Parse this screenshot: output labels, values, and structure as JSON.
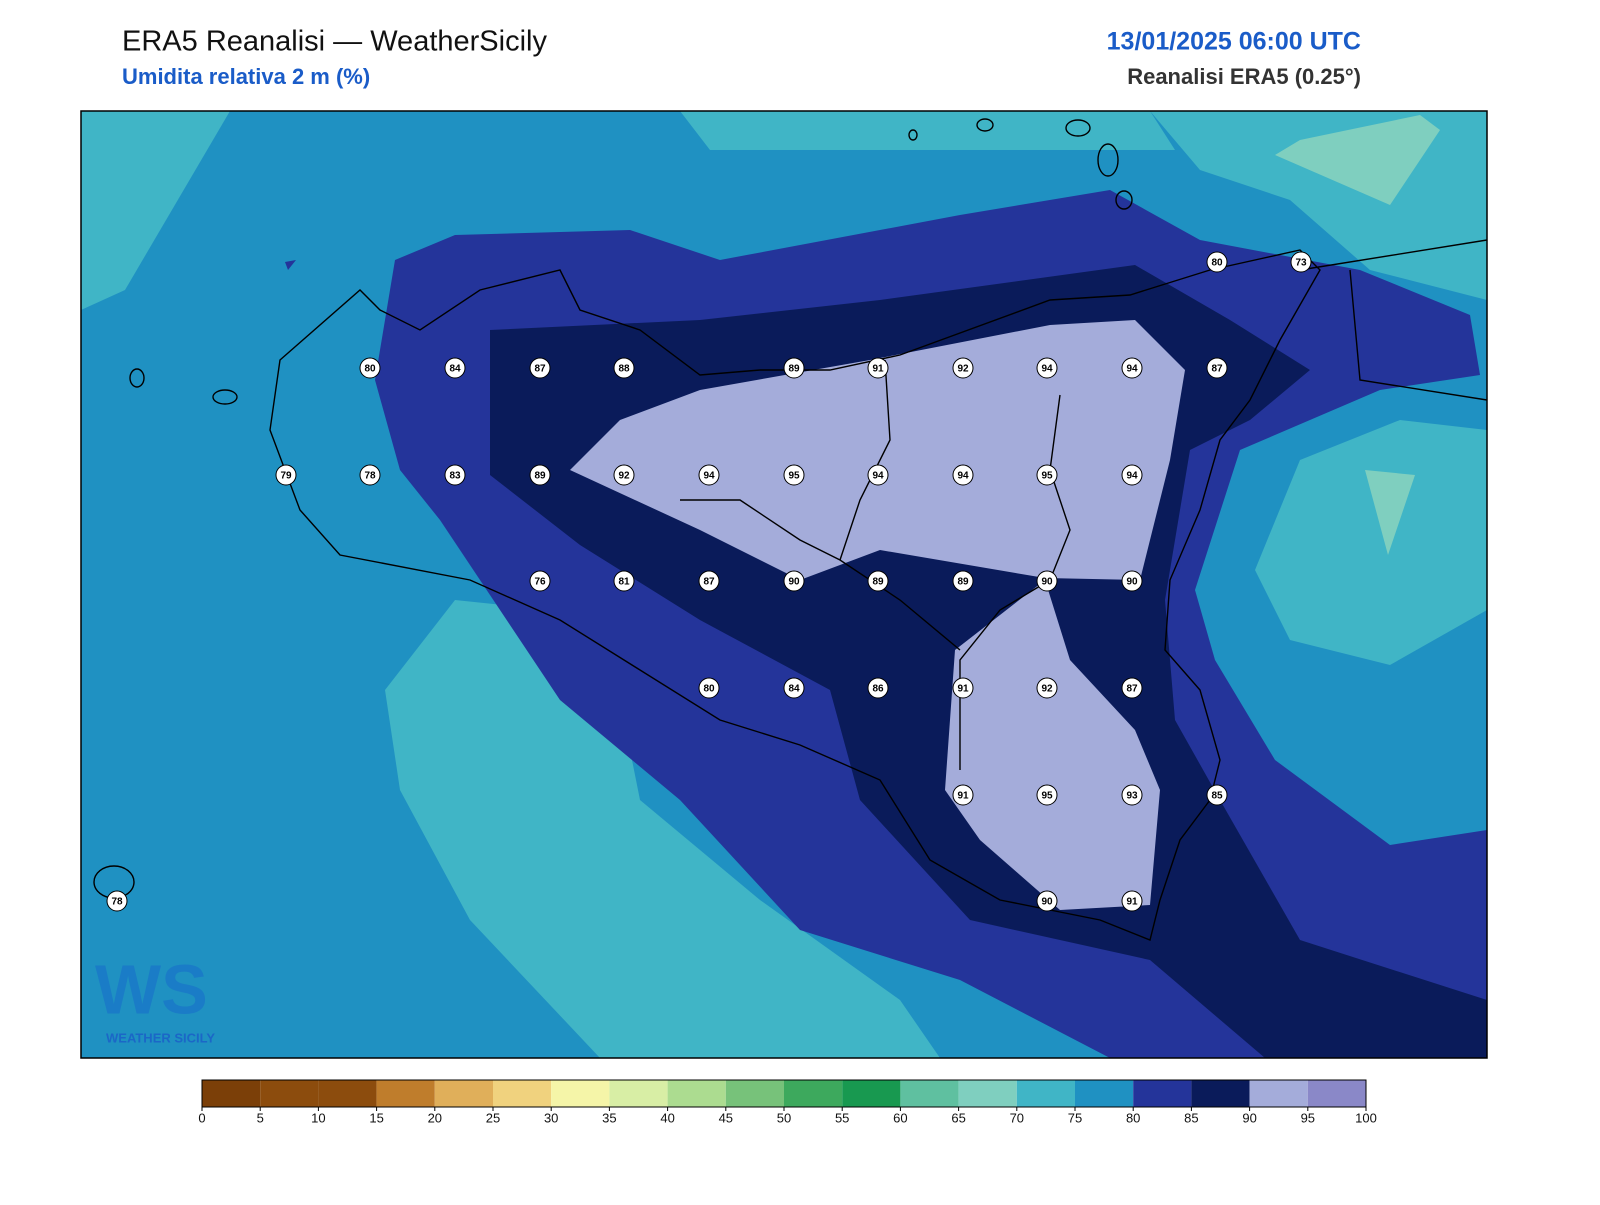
{
  "header": {
    "title": "ERA5 Reanalisi — WeatherSicily",
    "subtitle": "Umidita relativa 2 m (%)",
    "datetime": "13/01/2025 06:00 UTC",
    "source": "Reanalisi ERA5 (0.25°)"
  },
  "map": {
    "stations": [
      80,
      73,
      80,
      84,
      87,
      88,
      89,
      91,
      92,
      94,
      94,
      87,
      79,
      78,
      83,
      89,
      92,
      94,
      95,
      94,
      94,
      95,
      94,
      76,
      81,
      87,
      90,
      89,
      89,
      90,
      90,
      80,
      84,
      86,
      91,
      92,
      87,
      91,
      95,
      93,
      85,
      78,
      90,
      91
    ]
  },
  "logo": {
    "mark": "WS",
    "text": "WEATHER SICILY"
  },
  "colorbar": {
    "ticks": [
      0,
      5,
      10,
      15,
      20,
      25,
      30,
      35,
      40,
      45,
      50,
      55,
      60,
      65,
      70,
      75,
      80,
      85,
      90,
      95,
      100
    ],
    "colors": [
      "#7b3f08",
      "#8c4c0d",
      "#8c4c0d",
      "#bf7d2c",
      "#e0af5a",
      "#f0d27e",
      "#f5f5a8",
      "#d8eea5",
      "#acdc90",
      "#77c27a",
      "#3da95d",
      "#189950",
      "#5fc0a0",
      "#7fcfbf",
      "#40b5c6",
      "#1f91c2",
      "#24349a",
      "#0a1b5a",
      "#a4acda",
      "#8a88c8"
    ]
  }
}
